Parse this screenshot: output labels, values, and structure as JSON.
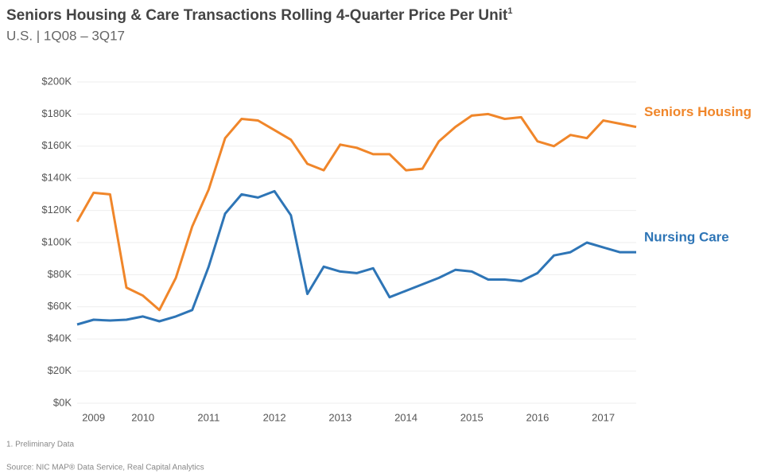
{
  "chart_data": {
    "type": "line",
    "title": "Seniors Housing & Care Transactions Rolling 4-Quarter Price Per Unit",
    "title_superscript": "1",
    "subtitle": "U.S. | 1Q08 – 3Q17",
    "footnote": "1. Preliminary Data",
    "source": "Source: NIC MAP® Data Service, Real Capital Analytics",
    "categories": [
      null,
      "2009",
      null,
      null,
      "2010",
      null,
      null,
      null,
      "2011",
      null,
      null,
      null,
      "2012",
      null,
      null,
      null,
      "2013",
      null,
      null,
      null,
      "2014",
      null,
      null,
      null,
      "2015",
      null,
      null,
      null,
      "2016",
      null,
      null,
      null,
      "2017",
      null,
      null
    ],
    "series": [
      {
        "name": "Seniors Housing",
        "color": "#f0862a",
        "values": [
          113000,
          131000,
          130000,
          72000,
          67000,
          58000,
          78000,
          110000,
          133000,
          165000,
          177000,
          176000,
          170000,
          164000,
          149000,
          145000,
          161000,
          159000,
          155000,
          155000,
          145000,
          146000,
          163000,
          172000,
          179000,
          180000,
          177000,
          178000,
          163000,
          160000,
          167000,
          165000,
          176000,
          174000,
          172000
        ]
      },
      {
        "name": "Nursing Care",
        "color": "#2e75b6",
        "values": [
          49000,
          52000,
          51500,
          52000,
          54000,
          51000,
          54000,
          58000,
          85000,
          118000,
          130000,
          128000,
          132000,
          117000,
          68000,
          85000,
          82000,
          81000,
          84000,
          66000,
          70000,
          74000,
          78000,
          83000,
          82000,
          77000,
          77000,
          76000,
          81000,
          92000,
          94000,
          100000,
          97000,
          94000,
          94000
        ]
      }
    ],
    "ylim": [
      0,
      200000
    ],
    "yticks": [
      {
        "value": 0,
        "label": "$0K"
      },
      {
        "value": 20000,
        "label": "$20K"
      },
      {
        "value": 40000,
        "label": "$40K"
      },
      {
        "value": 60000,
        "label": "$60K"
      },
      {
        "value": 80000,
        "label": "$80K"
      },
      {
        "value": 100000,
        "label": "$100K"
      },
      {
        "value": 120000,
        "label": "$120K"
      },
      {
        "value": 140000,
        "label": "$140K"
      },
      {
        "value": 160000,
        "label": "$160K"
      },
      {
        "value": 180000,
        "label": "$180K"
      },
      {
        "value": 200000,
        "label": "$200K"
      }
    ],
    "grid": true
  }
}
